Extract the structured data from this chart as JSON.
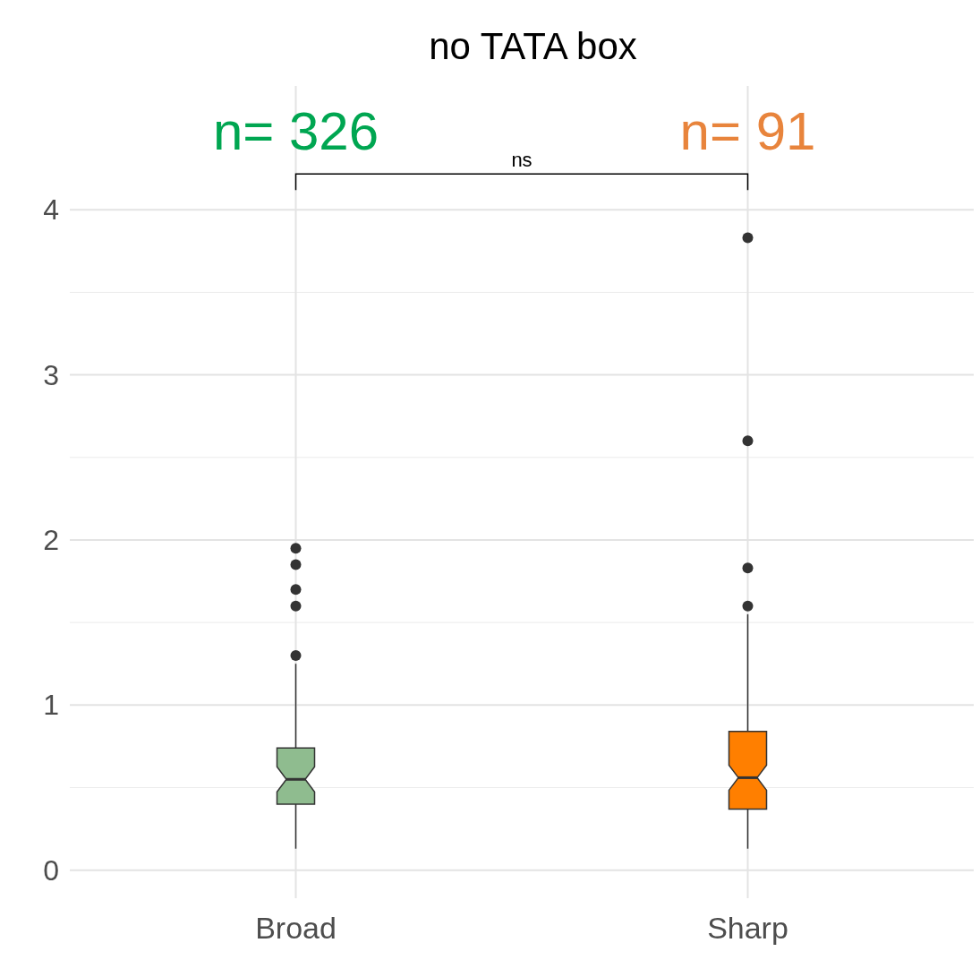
{
  "chart_data": {
    "type": "box",
    "title": "no TATA box",
    "categories": [
      "Broad",
      "Sharp"
    ],
    "series": [
      {
        "color": "#8fbc8f",
        "boxes": [
          {
            "low": 0.13,
            "q1": 0.4,
            "median": 0.55,
            "q3": 0.74,
            "high": 1.25,
            "outliers": [
              1.3,
              1.6,
              1.7,
              1.85,
              1.95
            ]
          },
          null
        ]
      },
      {
        "color": "#ff7f00",
        "boxes": [
          null,
          {
            "low": 0.13,
            "q1": 0.37,
            "median": 0.56,
            "q3": 0.84,
            "high": 1.55,
            "outliers": [
              1.6,
              1.83,
              2.6,
              3.83
            ]
          }
        ]
      }
    ],
    "ylim": [
      -0.17,
      4.75
    ],
    "yticks": [
      0,
      1,
      2,
      3,
      4
    ],
    "grid": true,
    "annotations": [
      "n= 326",
      "n= 91",
      "ns"
    ]
  }
}
